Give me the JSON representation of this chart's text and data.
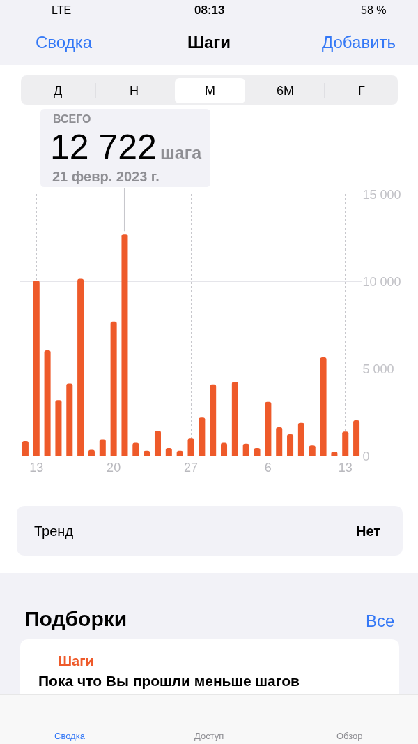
{
  "chart_data": {
    "type": "bar",
    "title": "Шаги",
    "x": [
      "2023-02-12",
      "2023-02-13",
      "2023-02-14",
      "2023-02-15",
      "2023-02-16",
      "2023-02-17",
      "2023-02-18",
      "2023-02-19",
      "2023-02-20",
      "2023-02-21",
      "2023-02-22",
      "2023-02-23",
      "2023-02-24",
      "2023-02-25",
      "2023-02-26",
      "2023-02-27",
      "2023-02-28",
      "2023-03-01",
      "2023-03-02",
      "2023-03-03",
      "2023-03-04",
      "2023-03-05",
      "2023-03-06",
      "2023-03-07",
      "2023-03-08",
      "2023-03-09",
      "2023-03-10",
      "2023-03-11",
      "2023-03-12",
      "2023-03-13",
      "2023-03-14"
    ],
    "values": [
      850,
      10050,
      6050,
      3200,
      4150,
      10150,
      350,
      950,
      7700,
      12722,
      750,
      300,
      1450,
      450,
      300,
      1000,
      2200,
      4100,
      750,
      4250,
      700,
      450,
      3100,
      1650,
      1250,
      1900,
      600,
      5650,
      250,
      1400,
      2050
    ],
    "color": "#ee5a2a",
    "xlim": [
      "2023-02-11T12:00",
      "2023-03-14T12:00"
    ],
    "xticks": [
      {
        "value": "2023-02-13",
        "label": "13"
      },
      {
        "value": "2023-02-20",
        "label": "20"
      },
      {
        "value": "2023-02-27",
        "label": "27"
      },
      {
        "value": "2023-03-06",
        "label": "6"
      },
      {
        "value": "2023-03-13",
        "label": "13"
      }
    ],
    "ylim": [
      0,
      15000
    ],
    "yticks": [
      0,
      {
        "value": 5000,
        "label": "5 000"
      },
      {
        "value": 10000,
        "label": "10 000"
      },
      {
        "value": 15000,
        "label": "15 000"
      }
    ],
    "grid": true,
    "annotations": [
      "LTE",
      "08:13",
      "58 %",
      "Сводка",
      "Добавить",
      "Д",
      "Н",
      "М",
      "6М",
      "Г",
      "ВСЕГО",
      {
        "text": "12 722",
        "x": "2023-02-21",
        "y": 12722
      },
      "шага",
      "21 февр. 2023 г.",
      "Тренд",
      "Нет",
      "Подборки",
      "Все",
      "Шаги",
      "Пока что Вы прошли меньше шагов",
      "Сводка",
      "Доступ",
      "Обзор"
    ]
  }
}
